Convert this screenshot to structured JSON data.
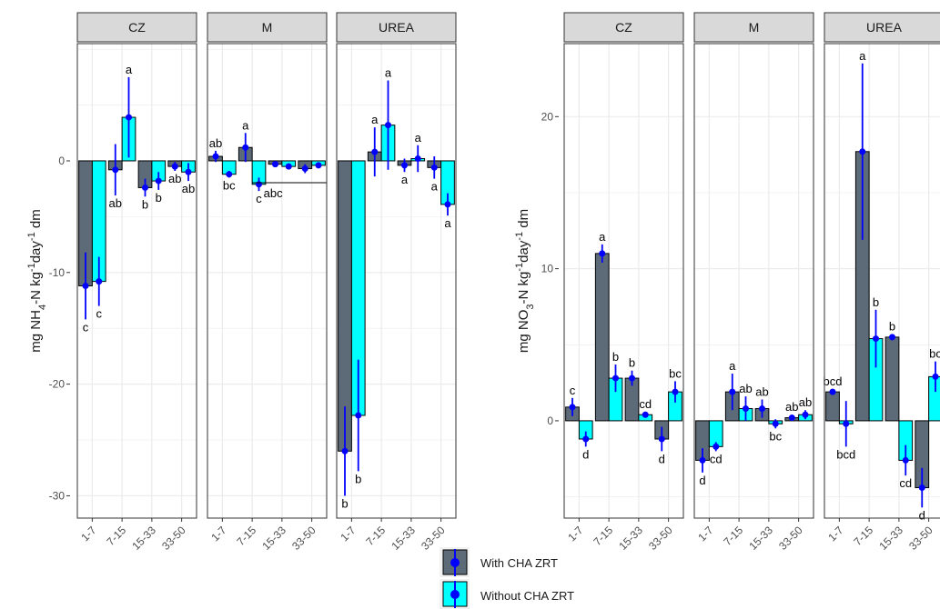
{
  "colors": {
    "with": "#5d6b79",
    "without": "#00ffff",
    "errorbar": "#0000ff",
    "strip": "#d9d9d9",
    "grid": "#ebebeb"
  },
  "legend": {
    "with_label": "With CHA ZRT",
    "without_label": "Without CHA ZRT"
  },
  "chart_data": [
    {
      "type": "bar",
      "ylabel": "mg NH4-N kg-1day-1 dm",
      "ylim": [
        -32,
        10.5
      ],
      "yticks": [
        -30,
        -20,
        -10,
        0
      ],
      "categories": [
        "1-7",
        "7-15",
        "15-33",
        "33-50"
      ],
      "facets": [
        {
          "name": "CZ",
          "series": [
            {
              "name": "With CHA ZRT",
              "values": [
                -11.2,
                -0.8,
                -2.4,
                -0.5
              ],
              "err": [
                3.0,
                2.3,
                0.8,
                0.4
              ],
              "labels": [
                "c",
                "ab",
                "b",
                "ab"
              ]
            },
            {
              "name": "Without CHA ZRT",
              "values": [
                -10.8,
                3.9,
                -1.8,
                -1.0
              ],
              "err": [
                2.2,
                3.6,
                0.8,
                0.8
              ],
              "labels": [
                "c",
                "a",
                "b",
                "ab"
              ]
            }
          ]
        },
        {
          "name": "M",
          "series": [
            {
              "name": "With CHA ZRT",
              "values": [
                0.4,
                1.2,
                -0.3,
                -0.7
              ],
              "err": [
                0.5,
                1.3,
                0.2,
                0.4
              ],
              "labels": [
                "ab",
                "a",
                "",
                ""
              ]
            },
            {
              "name": "Without CHA ZRT",
              "values": [
                -1.2,
                -2.1,
                -0.5,
                -0.4
              ],
              "err": [
                0.3,
                0.6,
                0.2,
                0.2
              ],
              "labels": [
                "bc",
                "c",
                "",
                ""
              ]
            }
          ],
          "group_label": "abc"
        },
        {
          "name": "UREA",
          "series": [
            {
              "name": "With CHA ZRT",
              "values": [
                -26.0,
                0.8,
                -0.4,
                -0.6
              ],
              "err": [
                4.0,
                2.2,
                0.6,
                1.0
              ],
              "labels": [
                "b",
                "a",
                "a",
                "a"
              ]
            },
            {
              "name": "Without CHA ZRT",
              "values": [
                -22.8,
                3.2,
                0.2,
                -3.9
              ],
              "err": [
                5.0,
                4.0,
                1.2,
                1.0
              ],
              "labels": [
                "b",
                "a",
                "a",
                "a"
              ]
            }
          ]
        }
      ]
    },
    {
      "type": "bar",
      "ylabel": "mg NO3-N kg-1day-1 dm",
      "ylim": [
        -6.4,
        24.8
      ],
      "yticks": [
        0,
        10,
        20
      ],
      "categories": [
        "1-7",
        "7-15",
        "15-33",
        "33-50"
      ],
      "facets": [
        {
          "name": "CZ",
          "series": [
            {
              "name": "With CHA ZRT",
              "values": [
                0.9,
                11.0,
                2.8,
                -1.2
              ],
              "err": [
                0.6,
                0.6,
                0.5,
                0.8
              ],
              "labels": [
                "c",
                "a",
                "b",
                "d"
              ]
            },
            {
              "name": "Without CHA ZRT",
              "values": [
                -1.2,
                2.8,
                0.4,
                1.9
              ],
              "err": [
                0.5,
                0.9,
                0.2,
                0.7
              ],
              "labels": [
                "d",
                "b",
                "cd",
                "bc"
              ]
            }
          ]
        },
        {
          "name": "M",
          "series": [
            {
              "name": "With CHA ZRT",
              "values": [
                -2.6,
                1.9,
                0.8,
                0.2
              ],
              "err": [
                0.8,
                1.2,
                0.6,
                0.2
              ],
              "labels": [
                "d",
                "a",
                "ab",
                "ab"
              ]
            },
            {
              "name": "Without CHA ZRT",
              "values": [
                -1.7,
                0.8,
                -0.2,
                0.4
              ],
              "err": [
                0.3,
                0.8,
                0.3,
                0.3
              ],
              "labels": [
                "cd",
                "ab",
                "bc",
                "ab"
              ]
            }
          ]
        },
        {
          "name": "UREA",
          "series": [
            {
              "name": "With CHA ZRT",
              "values": [
                1.9,
                17.7,
                5.5,
                -4.4
              ],
              "err": [
                0.2,
                5.8,
                0.2,
                1.3
              ],
              "labels": [
                "bcd",
                "a",
                "b",
                "d"
              ]
            },
            {
              "name": "Without CHA ZRT",
              "values": [
                -0.2,
                5.4,
                -2.6,
                2.9
              ],
              "err": [
                1.5,
                1.9,
                1.0,
                1.0
              ],
              "labels": [
                "bcd",
                "b",
                "cd",
                "bc"
              ]
            }
          ]
        }
      ]
    }
  ]
}
